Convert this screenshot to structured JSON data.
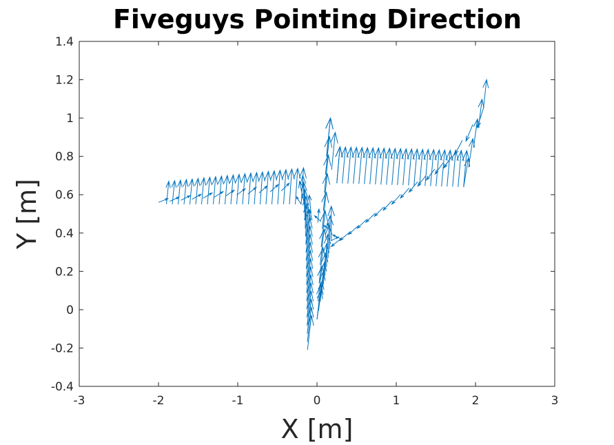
{
  "chart_data": {
    "type": "quiver",
    "title": "Fiveguys Pointing Direction",
    "xlabel": "X [m]",
    "ylabel": "Y [m]",
    "xlim": [
      -3,
      3
    ],
    "ylim": [
      -0.4,
      1.4
    ],
    "xticks": [
      -3,
      -2,
      -1,
      0,
      1,
      2,
      3
    ],
    "xtick_labels": [
      "-3",
      "-2",
      "-1",
      "0",
      "1",
      "2",
      "3"
    ],
    "yticks": [
      -0.4,
      -0.2,
      0,
      0.2,
      0.4,
      0.6,
      0.8,
      1.0,
      1.2,
      1.4
    ],
    "ytick_labels": [
      "-0.4",
      "-0.2",
      "0",
      "0.2",
      "0.4",
      "0.6",
      "0.8",
      "1",
      "1.2",
      "1.4"
    ],
    "grid": false,
    "arrow_color": "#0072BD",
    "segments": [
      {
        "x": [
          -0.12,
          -0.14
        ],
        "y": [
          -0.21,
          0.34
        ],
        "dx": [
          0.05,
          0.05
        ],
        "dy": [
          0.18,
          0.18
        ],
        "n": 14
      },
      {
        "x": [
          -0.14,
          -0.16
        ],
        "y": [
          0.34,
          0.55
        ],
        "dx": [
          0.03,
          -0.02
        ],
        "dy": [
          0.18,
          0.15
        ],
        "n": 6
      },
      {
        "x": [
          -0.16,
          0.18
        ],
        "y": [
          0.55,
          0.36
        ],
        "dx": [
          -0.06,
          0.09
        ],
        "dy": [
          0.12,
          0.02
        ],
        "n": 5
      },
      {
        "x": [
          0.18,
          0.0
        ],
        "y": [
          0.36,
          -0.05
        ],
        "dx": [
          0.0,
          0.05
        ],
        "dy": [
          0.18,
          0.15
        ],
        "n": 10
      },
      {
        "x": [
          0.0,
          0.12
        ],
        "y": [
          -0.05,
          0.8
        ],
        "dx": [
          0.05,
          0.05
        ],
        "dy": [
          0.18,
          0.2
        ],
        "n": 10
      },
      {
        "x": [
          0.12,
          0.25
        ],
        "y": [
          0.8,
          0.66
        ],
        "dx": [
          0.05,
          0.04
        ],
        "dy": [
          0.2,
          0.19
        ],
        "n": 3
      },
      {
        "x": [
          0.25,
          1.85
        ],
        "y": [
          0.66,
          0.64
        ],
        "dx": [
          0.04,
          0.04
        ],
        "dy": [
          0.19,
          0.19
        ],
        "n": 24
      },
      {
        "x": [
          1.85,
          2.1
        ],
        "y": [
          0.64,
          1.05
        ],
        "dx": [
          0.06,
          0.04
        ],
        "dy": [
          0.15,
          0.15
        ],
        "n": 5
      },
      {
        "x": [
          2.1,
          1.7
        ],
        "y": [
          1.05,
          0.8
        ],
        "dx": [
          -0.08,
          -0.1
        ],
        "dy": [
          -0.1,
          -0.06
        ],
        "n": 4
      },
      {
        "x": [
          1.7,
          0.3
        ],
        "y": [
          0.8,
          0.37
        ],
        "dx": [
          -0.1,
          -0.12
        ],
        "dy": [
          -0.06,
          -0.04
        ],
        "n": 14
      },
      {
        "x": [
          0.3,
          -0.2
        ],
        "y": [
          0.37,
          0.55
        ],
        "dx": [
          -0.1,
          -0.06
        ],
        "dy": [
          0.02,
          0.04
        ],
        "n": 5
      },
      {
        "x": [
          -0.2,
          -1.9
        ],
        "y": [
          0.55,
          0.55
        ],
        "dx": [
          0.03,
          0.03
        ],
        "dy": [
          0.19,
          0.12
        ],
        "n": 24
      },
      {
        "x": [
          -2.0,
          -0.45
        ],
        "y": [
          0.56,
          0.62
        ],
        "dx": [
          0.12,
          0.1
        ],
        "dy": [
          0.02,
          0.04
        ],
        "n": 12
      }
    ]
  }
}
